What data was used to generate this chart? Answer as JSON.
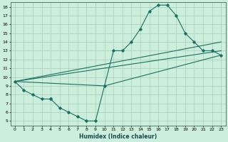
{
  "xlabel": "Humidex (Indice chaleur)",
  "background_color": "#cceedd",
  "grid_color": "#aaccbb",
  "line_color": "#1a7060",
  "xlim": [
    -0.5,
    23.5
  ],
  "ylim": [
    4.5,
    18.5
  ],
  "yticks": [
    5,
    6,
    7,
    8,
    9,
    10,
    11,
    12,
    13,
    14,
    15,
    16,
    17,
    18
  ],
  "xticks": [
    0,
    1,
    2,
    3,
    4,
    5,
    6,
    7,
    8,
    9,
    10,
    11,
    12,
    13,
    14,
    15,
    16,
    17,
    18,
    19,
    20,
    21,
    22,
    23
  ],
  "curve_x": [
    0,
    1,
    2,
    3,
    4,
    4,
    5,
    6,
    7,
    8,
    9,
    10,
    11,
    12,
    13,
    14,
    15,
    16,
    17,
    18,
    19,
    20,
    21,
    22,
    23
  ],
  "curve_y": [
    9.5,
    8.5,
    8.0,
    7.5,
    7.5,
    7.5,
    6.5,
    6.0,
    5.5,
    5.0,
    5.0,
    9.0,
    13.0,
    13.0,
    14.0,
    15.5,
    17.5,
    18.2,
    18.2,
    17.0,
    15.0,
    14.0,
    13.0,
    13.0,
    12.5
  ],
  "line2_x": [
    0,
    23
  ],
  "line2_y": [
    9.5,
    14.0
  ],
  "line3_x": [
    0,
    10,
    23
  ],
  "line3_y": [
    9.5,
    9.0,
    12.5
  ],
  "line4_x": [
    0,
    23
  ],
  "line4_y": [
    9.5,
    13.0
  ]
}
